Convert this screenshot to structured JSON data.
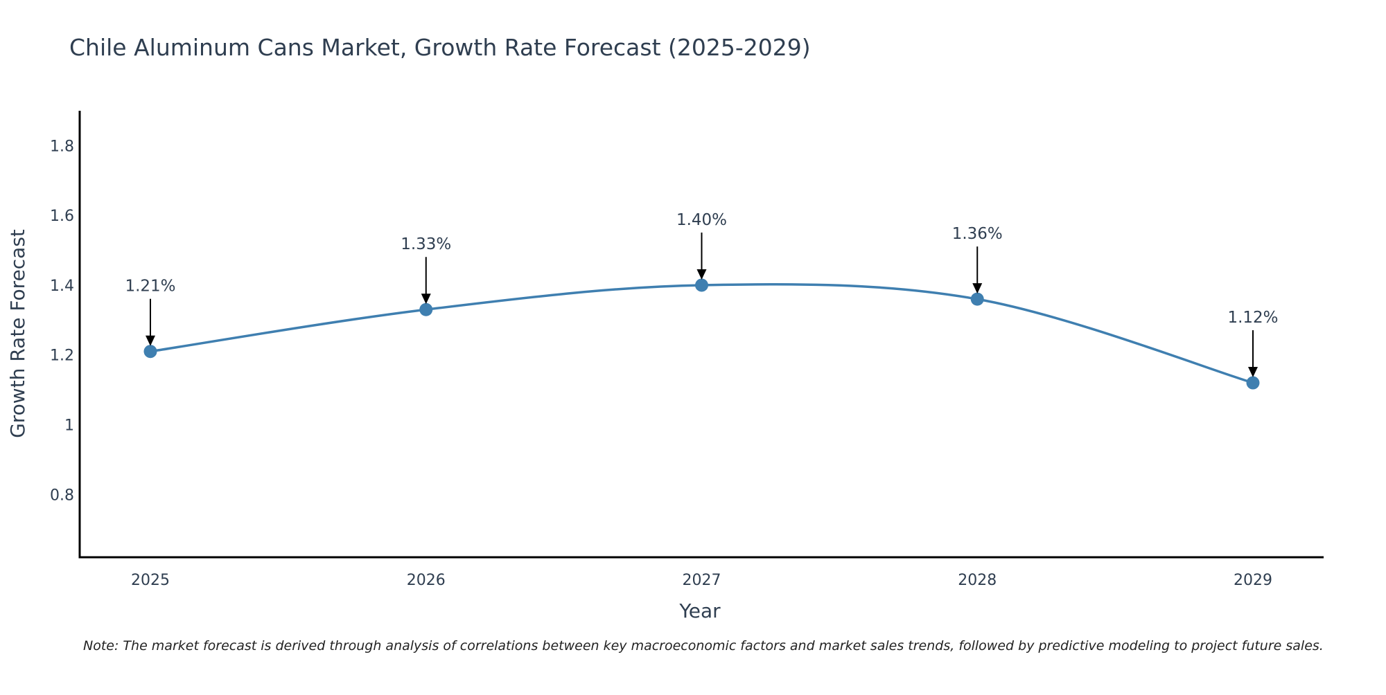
{
  "chart_data": {
    "type": "line",
    "title": "Chile Aluminum Cans Market, Growth Rate Forecast (2025-2029)",
    "xlabel": "Year",
    "ylabel": "Growth Rate Forecast",
    "categories": [
      "2025",
      "2026",
      "2027",
      "2028",
      "2029"
    ],
    "series": [
      {
        "name": "Growth Rate Forecast",
        "values": [
          1.21,
          1.33,
          1.4,
          1.36,
          1.12
        ],
        "labels": [
          "1.21%",
          "1.33%",
          "1.40%",
          "1.36%",
          "1.12%"
        ]
      }
    ],
    "ylim": [
      0.62,
      1.9
    ],
    "yticks": [
      0.8,
      1.0,
      1.2,
      1.4,
      1.6,
      1.8
    ],
    "ytick_labels": [
      "0.8",
      "1",
      "1.2",
      "1.4",
      "1.6",
      "1.8"
    ],
    "grid": false,
    "line_shape": "spline",
    "colors": {
      "line": "#3f7fb0",
      "marker": "#3f7fb0",
      "text": "#2f3e50",
      "axis": "#000000",
      "arrow": "#000000"
    },
    "note": "Note: The market forecast is derived through analysis of correlations between key macroeconomic factors and market sales trends, followed by predictive modeling to project future sales."
  }
}
